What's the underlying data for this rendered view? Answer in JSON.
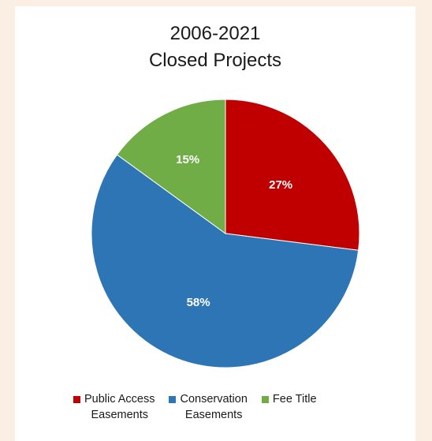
{
  "chart_data": {
    "type": "pie",
    "title_lines": [
      "2006-2021",
      "Closed Projects"
    ],
    "slices": [
      {
        "name": "Public Access\nEasements",
        "value": 27,
        "label": "27%",
        "color": "#c00000"
      },
      {
        "name": "Conservation\nEasements",
        "value": 58,
        "label": "58%",
        "color": "#2e75b6"
      },
      {
        "name": "Fee Title",
        "value": 15,
        "label": "15%",
        "color": "#70ad47"
      }
    ],
    "legend_position": "bottom"
  }
}
